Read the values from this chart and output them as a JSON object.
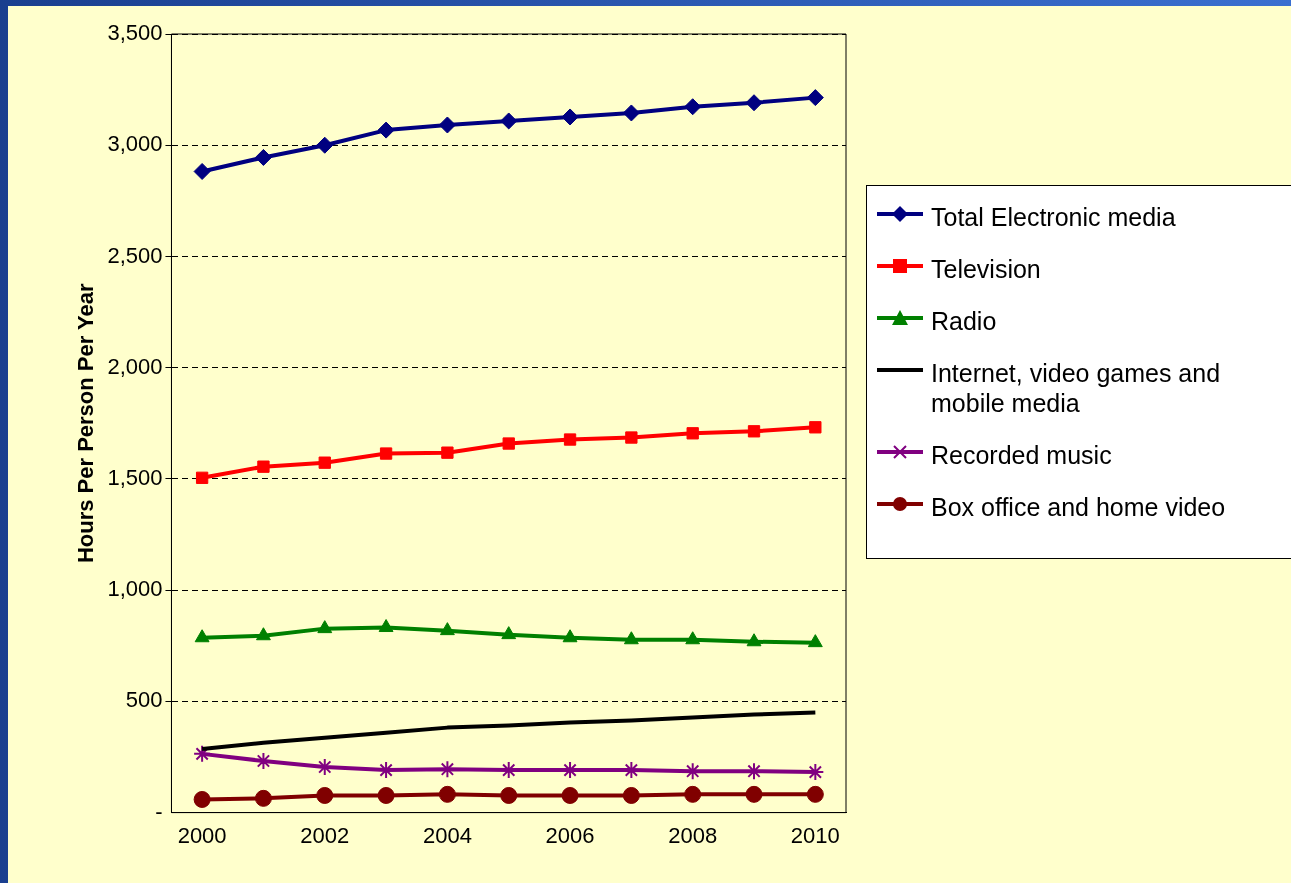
{
  "chart_data": {
    "type": "line",
    "ylabel": "Hours Per Person Per Year",
    "categories": [
      "2000",
      null,
      "2002",
      null,
      "2004",
      null,
      "2006",
      null,
      "2008",
      null,
      "2010"
    ],
    "ylim": [
      0,
      3500
    ],
    "yticks": [
      {
        "value": 0,
        "label": "-"
      },
      {
        "value": 500,
        "label": "500"
      },
      {
        "value": 1000,
        "label": "1,000"
      },
      {
        "value": 1500,
        "label": "1,500"
      },
      {
        "value": 2000,
        "label": "2,000"
      },
      {
        "value": 2500,
        "label": "2,500"
      },
      {
        "value": 3000,
        "label": "3,000"
      },
      {
        "value": 3500,
        "label": "3,500"
      }
    ],
    "grid": "y",
    "legend": "right",
    "line_style": "solid",
    "series": [
      {
        "name": "Total Electronic media",
        "color": "#000080",
        "marker": "diamond",
        "values": [
          2882,
          2945,
          3000,
          3068,
          3091,
          3109,
          3127,
          3145,
          3173,
          3191,
          3214
        ]
      },
      {
        "name": "Television",
        "color": "#ff0000",
        "marker": "square",
        "values": [
          1505,
          1555,
          1573,
          1614,
          1618,
          1659,
          1677,
          1686,
          1705,
          1714,
          1732
        ]
      },
      {
        "name": "Radio",
        "color": "#008000",
        "marker": "triangle",
        "values": [
          786,
          795,
          827,
          832,
          818,
          800,
          786,
          777,
          777,
          768,
          764
        ]
      },
      {
        "name": "Internet, video games and mobile media",
        "color": "#000000",
        "marker": "none",
        "values": [
          286,
          314,
          336,
          359,
          382,
          391,
          405,
          414,
          427,
          441,
          450
        ]
      },
      {
        "name": "Recorded music",
        "color": "#800080",
        "marker": "cross",
        "values": [
          264,
          232,
          205,
          191,
          195,
          191,
          191,
          191,
          186,
          186,
          182
        ]
      },
      {
        "name": "Box office and home video",
        "color": "#800000",
        "marker": "circle",
        "values": [
          59,
          64,
          77,
          77,
          82,
          77,
          77,
          77,
          82,
          82,
          82
        ]
      }
    ]
  }
}
